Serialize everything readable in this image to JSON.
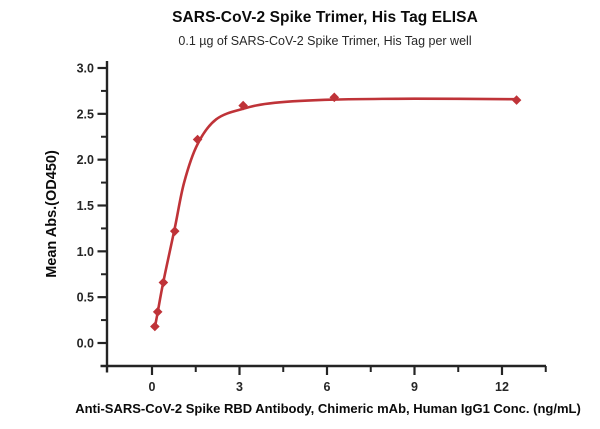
{
  "chart_data": {
    "type": "scatter",
    "title": "SARS-CoV-2 Spike Trimer, His Tag ELISA",
    "subtitle": "0.1 µg of SARS-CoV-2 Spike Trimer, His Tag per well",
    "xlabel": "Anti-SARS-CoV-2 Spike RBD Antibody, Chimeric mAb, Human IgG1 Conc. (ng/mL)",
    "ylabel": "Mean Abs.(OD450)",
    "xlim": [
      -1.55,
      13.65
    ],
    "ylim": [
      -0.25,
      3.07
    ],
    "x_major_ticks": [
      0,
      3,
      6,
      9,
      12
    ],
    "x_minor_ticks": [
      1.5,
      4.5,
      7.5,
      10.5,
      13.5
    ],
    "y_major_ticks": [
      0.0,
      0.5,
      1.0,
      1.5,
      2.0,
      2.5,
      3.0
    ],
    "y_minor_ticks": [
      0.25,
      0.75,
      1.25,
      1.75,
      2.25,
      2.75
    ],
    "grid": false,
    "legend": false,
    "marker": "diamond",
    "series_color": "#bf3338",
    "axis_color": "#242424",
    "points": {
      "x": [
        0.098,
        0.195,
        0.39,
        0.78,
        1.5625,
        3.125,
        6.25,
        12.5
      ],
      "y": [
        0.18,
        0.34,
        0.66,
        1.22,
        2.22,
        2.59,
        2.68,
        2.65
      ]
    },
    "fit_curve": {
      "x": [
        0.098,
        0.195,
        0.39,
        0.78,
        1.1,
        1.5625,
        2.2,
        3.125,
        4.2,
        6.25,
        9.0,
        12.5
      ],
      "y": [
        0.17,
        0.335,
        0.67,
        1.25,
        1.75,
        2.17,
        2.44,
        2.555,
        2.62,
        2.655,
        2.665,
        2.66
      ]
    }
  }
}
